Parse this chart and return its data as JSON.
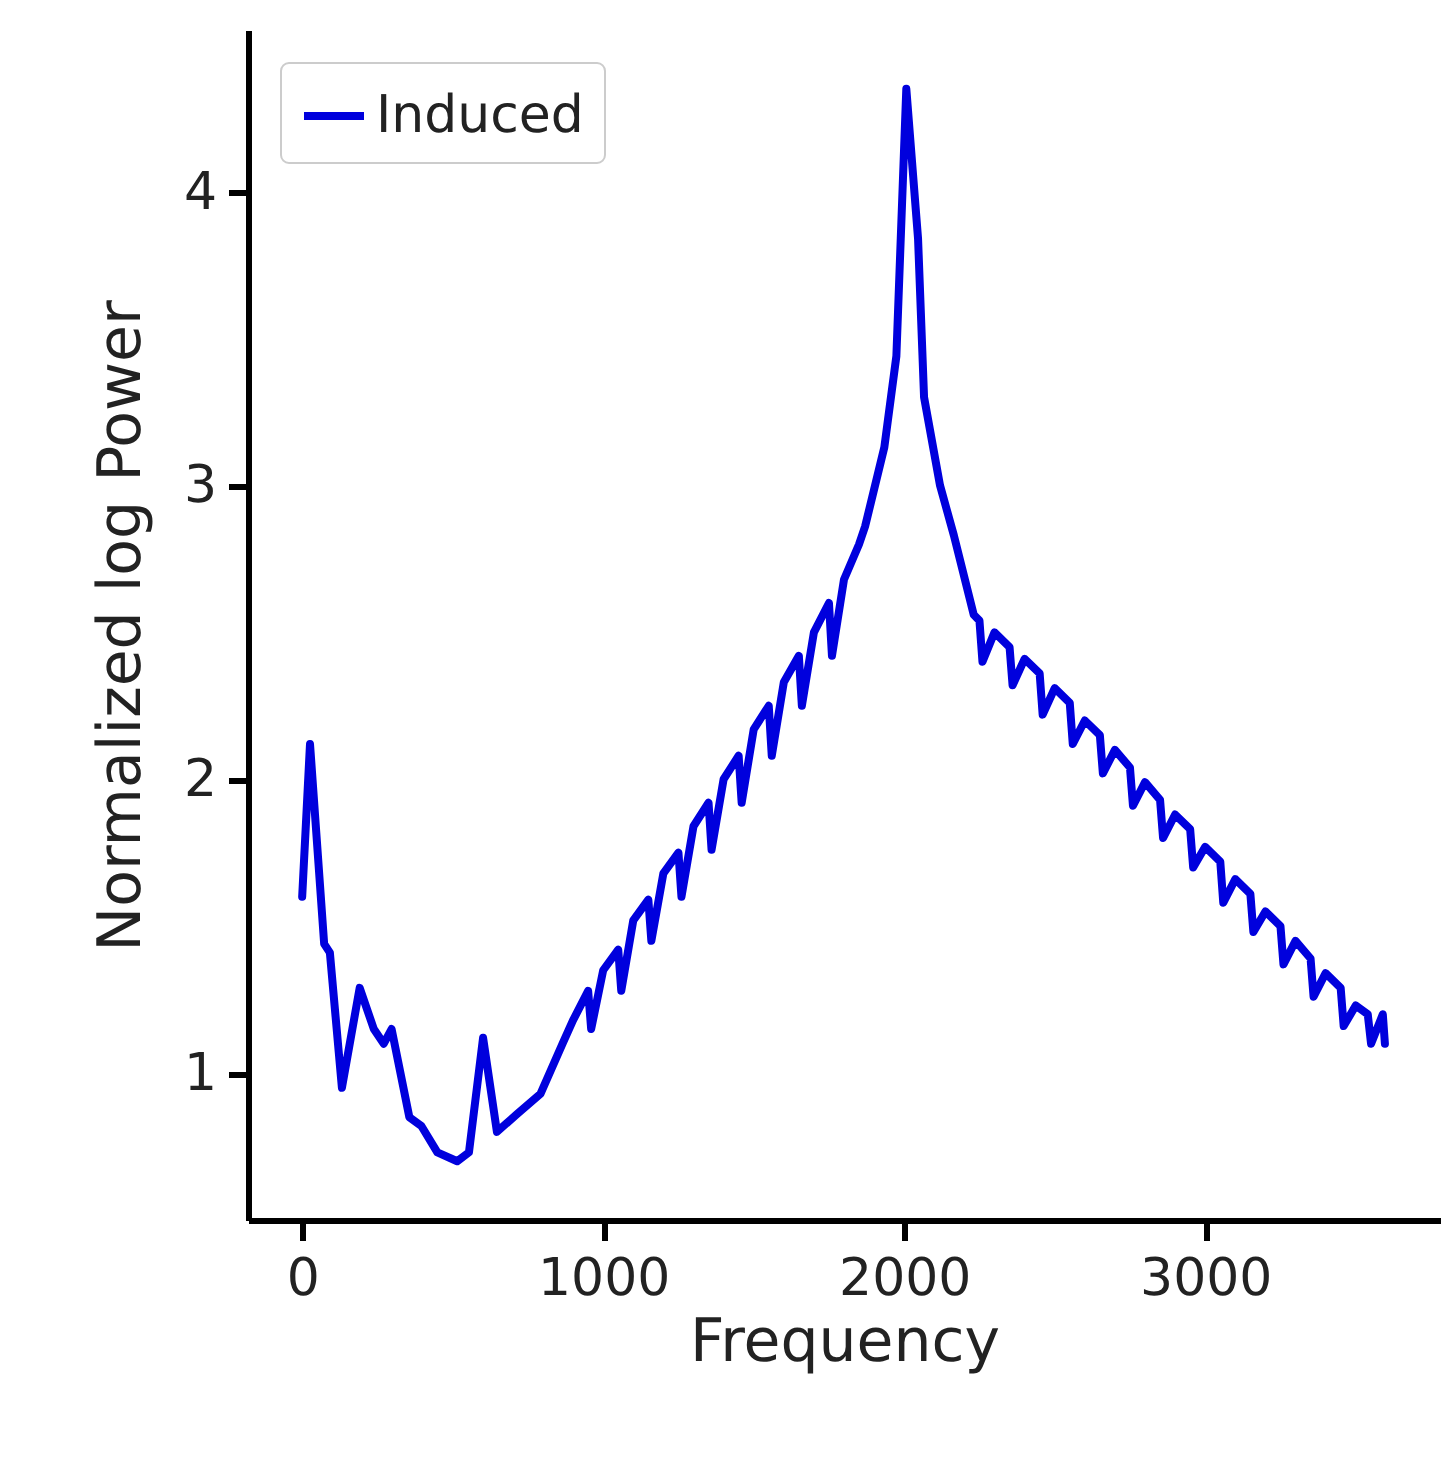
{
  "chart_data": {
    "type": "line",
    "xlabel": "Frequency",
    "ylabel": "Normalized log Power",
    "x": [
      0,
      26,
      73,
      92,
      132,
      191,
      238,
      271,
      297,
      356,
      396,
      449,
      515,
      554,
      601,
      647,
      713,
      792,
      865,
      900,
      950,
      960,
      1000,
      1050,
      1060,
      1100,
      1150,
      1160,
      1200,
      1250,
      1260,
      1300,
      1350,
      1360,
      1400,
      1450,
      1460,
      1500,
      1550,
      1560,
      1600,
      1650,
      1660,
      1700,
      1750,
      1760,
      1800,
      1850,
      1870,
      1934,
      1974,
      2007,
      2046,
      2066,
      2119,
      2165,
      2231,
      2250,
      2260,
      2300,
      2350,
      2360,
      2400,
      2450,
      2460,
      2500,
      2550,
      2560,
      2600,
      2650,
      2660,
      2700,
      2750,
      2760,
      2800,
      2850,
      2860,
      2900,
      2950,
      2960,
      3000,
      3050,
      3060,
      3100,
      3150,
      3160,
      3200,
      3250,
      3260,
      3300,
      3350,
      3360,
      3400,
      3450,
      3460,
      3500,
      3540,
      3551,
      3590,
      3597
    ],
    "series": [
      {
        "name": "Induced",
        "color": "#0000dd",
        "values": [
          1.6,
          2.12,
          1.44,
          1.41,
          0.95,
          1.29,
          1.15,
          1.1,
          1.15,
          0.85,
          0.82,
          0.73,
          0.7,
          0.73,
          1.12,
          0.8,
          0.86,
          0.93,
          1.1,
          1.18,
          1.28,
          1.15,
          1.35,
          1.42,
          1.28,
          1.52,
          1.59,
          1.45,
          1.68,
          1.75,
          1.6,
          1.84,
          1.92,
          1.76,
          2.0,
          2.08,
          1.92,
          2.17,
          2.25,
          2.08,
          2.33,
          2.42,
          2.25,
          2.5,
          2.6,
          2.42,
          2.68,
          2.8,
          2.86,
          3.13,
          3.44,
          4.35,
          3.84,
          3.3,
          3.0,
          2.83,
          2.56,
          2.54,
          2.4,
          2.5,
          2.45,
          2.32,
          2.41,
          2.36,
          2.22,
          2.31,
          2.26,
          2.12,
          2.2,
          2.15,
          2.02,
          2.1,
          2.04,
          1.91,
          1.99,
          1.93,
          1.8,
          1.88,
          1.83,
          1.7,
          1.77,
          1.72,
          1.58,
          1.66,
          1.61,
          1.48,
          1.55,
          1.5,
          1.37,
          1.45,
          1.39,
          1.26,
          1.34,
          1.29,
          1.16,
          1.23,
          1.2,
          1.1,
          1.2,
          1.1
        ]
      }
    ],
    "xlim": [
      -180,
      3780
    ],
    "ylim": [
      0.5,
      4.55
    ],
    "xticks": [
      0,
      1000,
      2000,
      3000
    ],
    "yticks": [
      1,
      2,
      3,
      4
    ],
    "legend": "top left",
    "grid": false,
    "marker": "none",
    "line_style": "solid"
  }
}
